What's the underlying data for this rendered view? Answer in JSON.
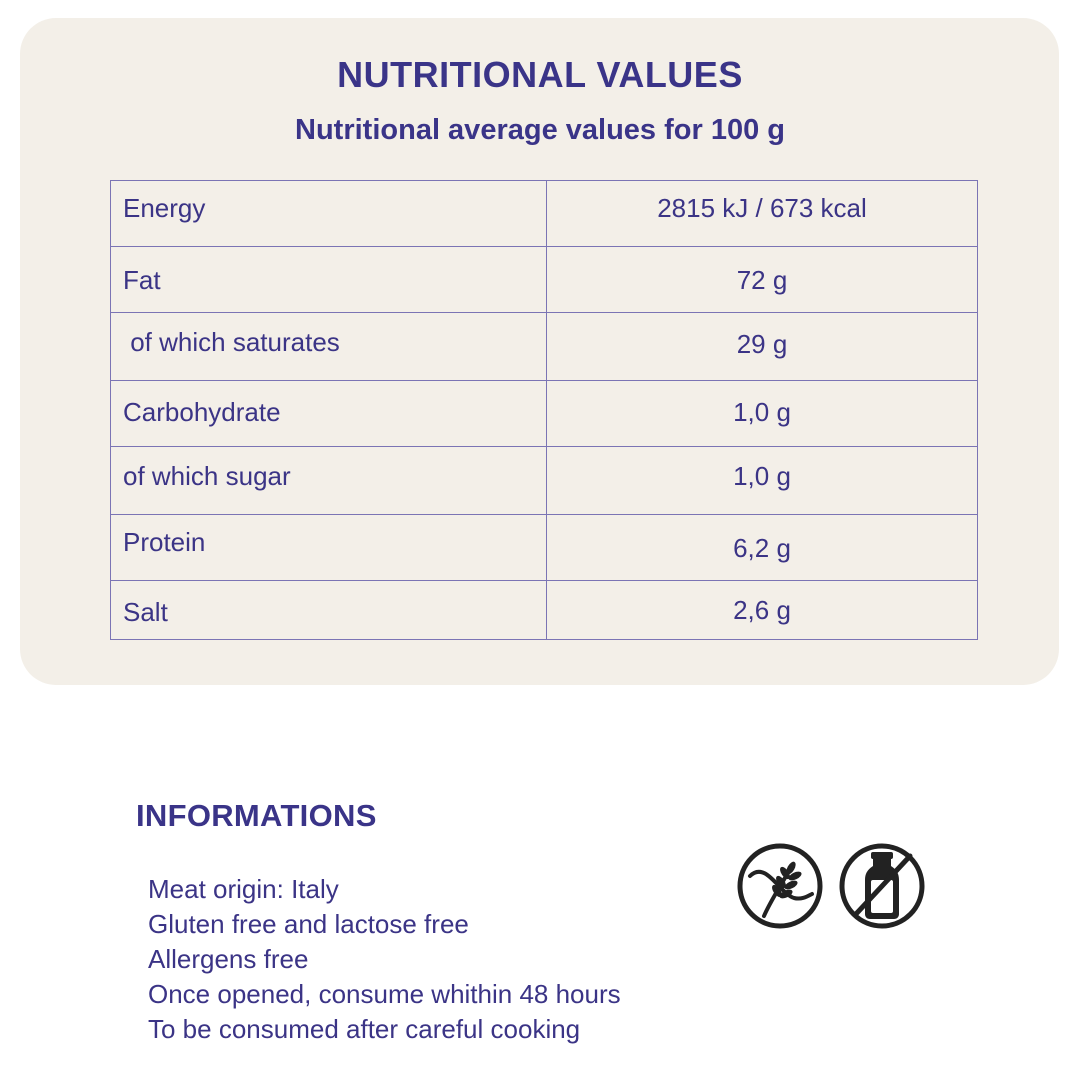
{
  "nutrition": {
    "title": "NUTRITIONAL VALUES",
    "subtitle": "Nutritional average values for 100 g",
    "rows": [
      {
        "label": "Energy",
        "value": "2815 kJ / 673 kcal"
      },
      {
        "label": "Fat",
        "value": "72 g"
      },
      {
        "label": " of which saturates",
        "value": "29 g"
      },
      {
        "label": "Carbohydrate",
        "value": "1,0 g"
      },
      {
        "label": "of which sugar",
        "value": "1,0 g"
      },
      {
        "label": "Protein",
        "value": " 6,2 g"
      },
      {
        "label": "Salt",
        "value": "2,6 g"
      }
    ]
  },
  "informations": {
    "heading": "INFORMATIONS",
    "items": [
      "Meat origin: Italy",
      "Gluten free and lactose free",
      "Allergens free",
      "Once opened, consume whithin 48 hours",
      "To be consumed after careful cooking"
    ],
    "icons": [
      "gluten-free-icon",
      "lactose-free-icon"
    ]
  },
  "colors": {
    "text": "#3b3486",
    "card_background": "#f3efe8",
    "table_border": "#7b74b4",
    "icon": "#222222"
  }
}
